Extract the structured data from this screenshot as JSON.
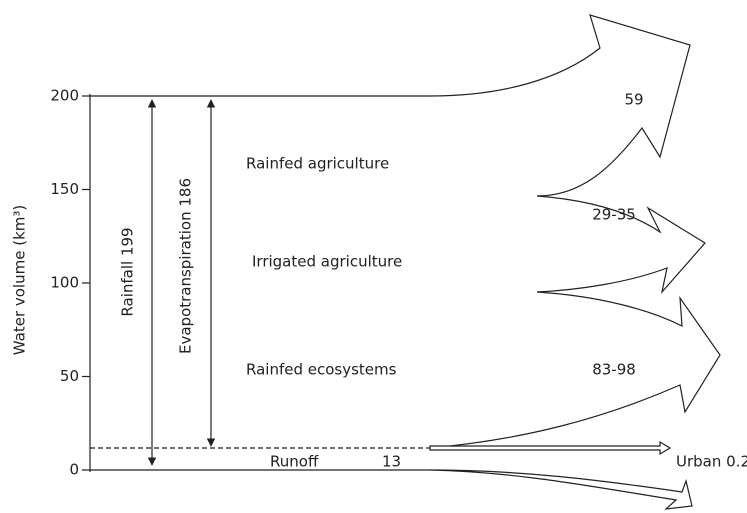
{
  "axis": {
    "label": "Water volume (km³)",
    "ylim": [
      0,
      200
    ],
    "yticks": [
      0,
      50,
      100,
      150,
      200
    ]
  },
  "flows": {
    "rainfall": "Rainfall 199",
    "evapotranspiration": "Evapotranspiration 186",
    "rainfed_agriculture": "Rainfed agriculture",
    "rainfed_agriculture_value": "59",
    "irrigated_agriculture": "Irrigated agriculture",
    "irrigated_agriculture_value": "29-35",
    "rainfed_ecosystems": "Rainfed ecosystems",
    "rainfed_ecosystems_value": "83-98",
    "runoff": "Runoff",
    "runoff_value": "13",
    "urban": "Urban 0.2"
  }
}
